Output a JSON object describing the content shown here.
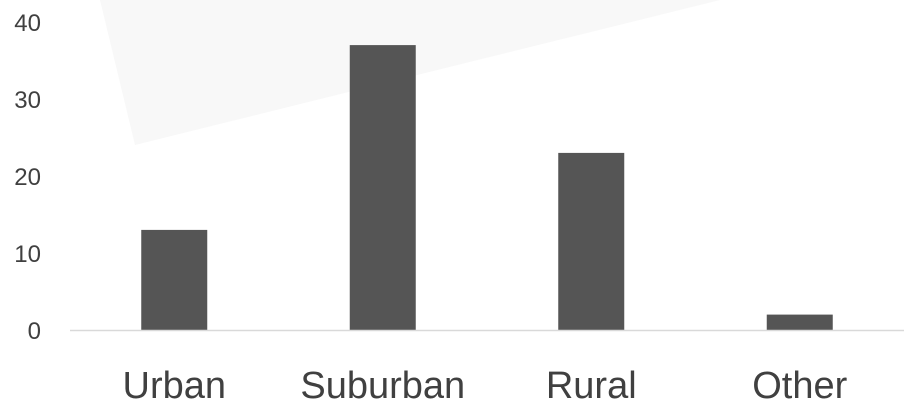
{
  "chart_data": {
    "type": "bar",
    "title": "",
    "xlabel": "",
    "ylabel": "",
    "categories": [
      "Urban",
      "Suburban",
      "Rural",
      "Other"
    ],
    "values": [
      13,
      37,
      23,
      2
    ],
    "ylim": [
      0,
      40
    ],
    "yticks": [
      0,
      10,
      20,
      30,
      40
    ],
    "grid": false,
    "legend": "none",
    "colors": {
      "bar": "#555555",
      "axis": "#d9d9d9",
      "text": "#404040"
    }
  }
}
